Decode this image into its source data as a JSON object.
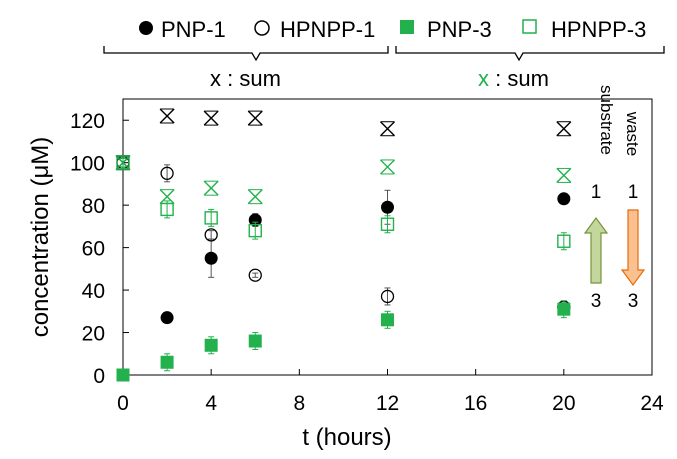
{
  "chart_data": {
    "type": "scatter",
    "xlabel": "t (hours)",
    "ylabel": "concentration (μM)",
    "xlim": [
      0,
      24
    ],
    "ylim": [
      0,
      130
    ],
    "xticks": [
      0,
      4,
      8,
      12,
      16,
      20,
      24
    ],
    "yticks": [
      0,
      20,
      40,
      60,
      80,
      100,
      120
    ],
    "grid": false,
    "legend_position": "top",
    "series": [
      {
        "name": "PNP-1",
        "marker": "filled-circle",
        "color": "#000000",
        "points": [
          {
            "x": 0,
            "y": 0,
            "err": 2
          },
          {
            "x": 2,
            "y": 27,
            "err": 2
          },
          {
            "x": 4,
            "y": 55,
            "err": 9
          },
          {
            "x": 6,
            "y": 73,
            "err": 3
          },
          {
            "x": 12,
            "y": 79,
            "err": 8
          },
          {
            "x": 20,
            "y": 83,
            "err": 1
          }
        ]
      },
      {
        "name": "HPNPP-1",
        "marker": "open-circle",
        "color": "#000000",
        "points": [
          {
            "x": 0,
            "y": 100,
            "err": 2
          },
          {
            "x": 2,
            "y": 95,
            "err": 4
          },
          {
            "x": 4,
            "y": 66,
            "err": 2
          },
          {
            "x": 6,
            "y": 47,
            "err": 1
          },
          {
            "x": 12,
            "y": 37,
            "err": 4
          },
          {
            "x": 20,
            "y": 32,
            "err": 2
          }
        ]
      },
      {
        "name": "PNP-3",
        "marker": "filled-square",
        "color": "#22b14c",
        "points": [
          {
            "x": 0,
            "y": 0,
            "err": 2
          },
          {
            "x": 2,
            "y": 6,
            "err": 4
          },
          {
            "x": 4,
            "y": 14,
            "err": 4
          },
          {
            "x": 6,
            "y": 16,
            "err": 4
          },
          {
            "x": 12,
            "y": 26,
            "err": 4
          },
          {
            "x": 20,
            "y": 31,
            "err": 4
          }
        ]
      },
      {
        "name": "HPNPP-3",
        "marker": "open-square",
        "color": "#22b14c",
        "points": [
          {
            "x": 0,
            "y": 100,
            "err": 2
          },
          {
            "x": 2,
            "y": 78,
            "err": 4
          },
          {
            "x": 4,
            "y": 74,
            "err": 4
          },
          {
            "x": 6,
            "y": 68,
            "err": 4
          },
          {
            "x": 12,
            "y": 71,
            "err": 4
          },
          {
            "x": 20,
            "y": 63,
            "err": 4
          }
        ]
      },
      {
        "name": "x : sum",
        "marker": "x",
        "color": "#000000",
        "points": [
          {
            "x": 0,
            "y": 100
          },
          {
            "x": 2,
            "y": 122
          },
          {
            "x": 4,
            "y": 121
          },
          {
            "x": 6,
            "y": 121
          },
          {
            "x": 12,
            "y": 116
          },
          {
            "x": 20,
            "y": 116
          }
        ]
      },
      {
        "name": "x : sum",
        "marker": "x",
        "color": "#22b14c",
        "points": [
          {
            "x": 0,
            "y": 100
          },
          {
            "x": 2,
            "y": 84
          },
          {
            "x": 4,
            "y": 88
          },
          {
            "x": 6,
            "y": 84
          },
          {
            "x": 12,
            "y": 98
          },
          {
            "x": 20,
            "y": 94
          }
        ]
      }
    ],
    "legend": [
      {
        "label": "PNP-1",
        "marker": "filled-circle",
        "color": "#000000"
      },
      {
        "label": "HPNPP-1",
        "marker": "open-circle",
        "color": "#000000"
      },
      {
        "label": "PNP-3",
        "marker": "filled-square",
        "color": "#22b14c"
      },
      {
        "label": "HPNPP-3",
        "marker": "open-square",
        "color": "#22b14c"
      }
    ],
    "sum_labels": {
      "black": {
        "symbol": "x",
        "text": " : sum"
      },
      "green": {
        "symbol": "x",
        "text": " : sum"
      }
    },
    "annotations": {
      "substrate": {
        "label": "substrate",
        "top": "1",
        "bottom": "3",
        "arrow": "up",
        "fill": "#c3d69b",
        "stroke": "#77933c"
      },
      "waste": {
        "label": "waste",
        "top": "1",
        "bottom": "3",
        "arrow": "down",
        "fill": "#fac090",
        "stroke": "#e46c0a"
      }
    }
  }
}
